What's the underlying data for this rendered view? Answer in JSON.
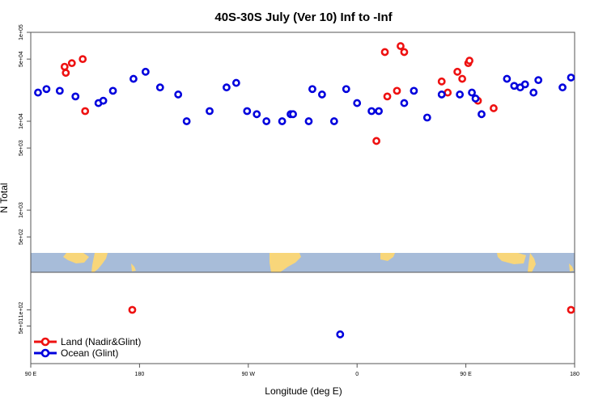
{
  "chart_data": {
    "type": "scatter",
    "title": "40S-30S July (Ver 10)   Inf to -Inf",
    "xlabel": "Longitude (deg E)",
    "ylabel": "N Total",
    "x_tick_labels": [
      "90 E",
      "180",
      "90 W",
      "0",
      "90 E",
      "180"
    ],
    "x_tick_values": [
      90,
      180,
      270,
      360,
      450,
      540
    ],
    "xlim": [
      90,
      540
    ],
    "upper_ylim": [
      200,
      100000
    ],
    "upper_y_tick_labels": [
      "5e+02",
      "1e+03",
      "5e+03",
      "1e+04",
      "5e+04",
      "1e+05"
    ],
    "upper_y_tick_values": [
      500,
      1000,
      5000,
      10000,
      50000,
      100000
    ],
    "lower_ylim": [
      10,
      500
    ],
    "lower_y_tick_labels": [
      "5e+01",
      "1e+02"
    ],
    "lower_y_tick_values": [
      50,
      100
    ],
    "legend": {
      "position": "bottom-left",
      "entries": [
        "Land (Nadir&Glint)",
        "Ocean (Glint)"
      ]
    },
    "colors": {
      "land": "#ee1111",
      "ocean": "#0000dd",
      "map_ocean": "#a7bcd9",
      "map_land": "#f8d67a"
    },
    "series": [
      {
        "name": "Land (Nadir&Glint)",
        "x": [
          118,
          119,
          124,
          133,
          135,
          376,
          383,
          385,
          393,
          396,
          399,
          430,
          435,
          443,
          447,
          452,
          453,
          460,
          473
        ],
        "y": [
          41000,
          35000,
          45000,
          50000,
          13000,
          6000,
          60000,
          19000,
          22000,
          70000,
          60000,
          28000,
          21000,
          36000,
          30000,
          45000,
          48000,
          17000,
          14000
        ],
        "lower_x": [
          174,
          537
        ],
        "lower_y": [
          100,
          100
        ]
      },
      {
        "name": "Ocean (Glint)",
        "x": [
          96,
          103,
          114,
          127,
          146,
          150,
          158,
          175,
          185,
          197,
          212,
          219,
          238,
          252,
          260,
          269,
          277,
          285,
          298,
          305,
          307,
          320,
          323,
          331,
          341,
          351,
          360,
          372,
          378,
          399,
          407,
          418,
          430,
          445,
          455,
          458,
          463,
          484,
          490,
          495,
          499,
          506,
          510,
          530,
          537
        ],
        "y": [
          21000,
          23000,
          22000,
          19000,
          16000,
          17000,
          22000,
          30000,
          36000,
          24000,
          20000,
          10000,
          13000,
          24000,
          27000,
          13000,
          12000,
          10000,
          10000,
          12000,
          12000,
          10000,
          23000,
          20000,
          10000,
          23000,
          16000,
          13000,
          13000,
          16000,
          22000,
          11000,
          20000,
          20000,
          21000,
          18000,
          12000,
          30000,
          25000,
          24000,
          26000,
          21000,
          29000,
          24000,
          31000
        ],
        "lower_x": [
          346
        ],
        "lower_y": [
          35
        ]
      }
    ]
  }
}
